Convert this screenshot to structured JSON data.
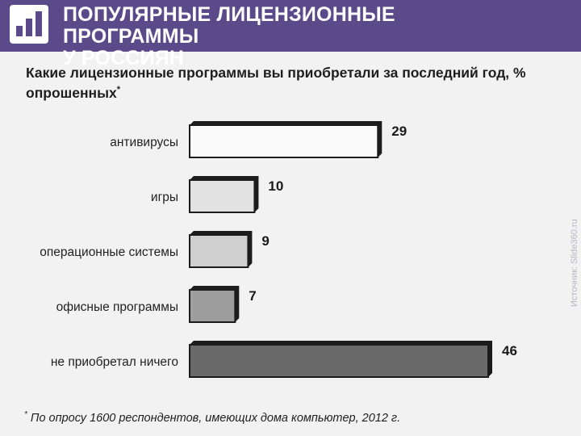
{
  "header": {
    "icon": "bar-chart-icon",
    "title_line1": "ПОПУЛЯРНЫЕ ЛИЦЕНЗИОННЫЕ ПРОГРАММЫ",
    "title_line2": "У РОССИЯН",
    "background": "#5a4a8a"
  },
  "question": {
    "text": "Какие лицензионные программы вы приобретали за последний год, % опрошенных",
    "mark": "*"
  },
  "footnote": {
    "mark": "*",
    "text": " По опросу 1600 респондентов, имеющих дома компьютер, 2012 г."
  },
  "watermark": "Источник: Slide360.ru",
  "chart_data": {
    "type": "bar",
    "orientation": "horizontal",
    "categories": [
      "антивирусы",
      "игры",
      "операционные системы",
      "офисные программы",
      "не приобретал ничего"
    ],
    "values": [
      29,
      10,
      9,
      7,
      46
    ],
    "data_labels": [
      "29",
      "10",
      "9",
      "7",
      "46"
    ],
    "bar_colors": [
      "#fafafa",
      "#e2e2e2",
      "#cfcfcf",
      "#9e9e9e",
      "#6a6a6a"
    ],
    "xlim": [
      0,
      46
    ],
    "grid": false,
    "legend": "none"
  }
}
